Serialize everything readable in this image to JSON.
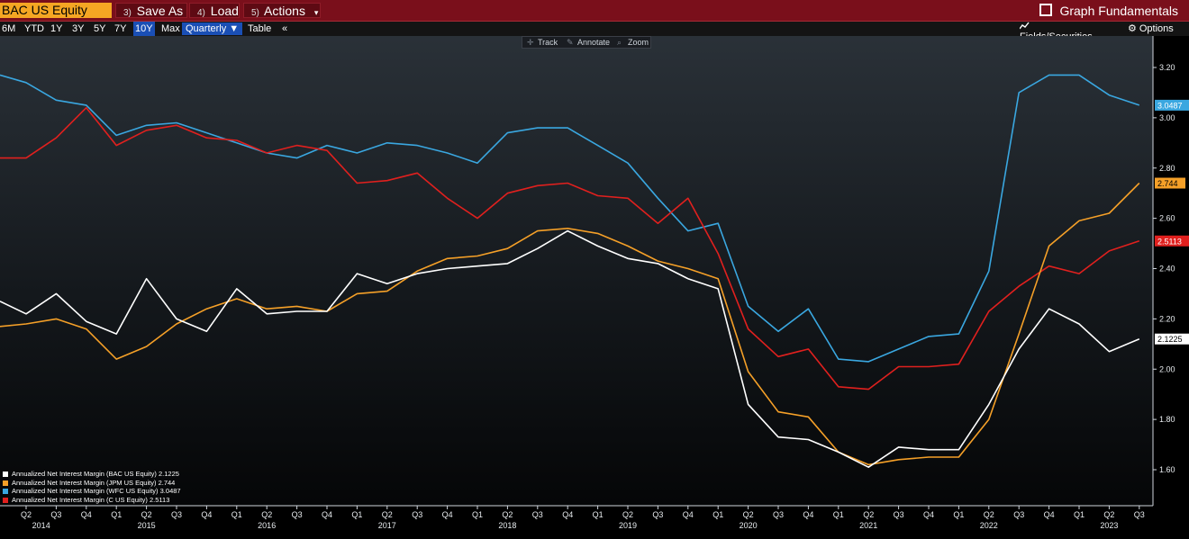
{
  "toolbar": {
    "ticker": "BAC US Equity",
    "save_as": {
      "num": "3)",
      "label": "Save As"
    },
    "load": {
      "num": "4)",
      "label": "Load"
    },
    "actions": {
      "num": "5)",
      "label": "Actions",
      "caret": "▾"
    },
    "graph_fundamentals": "Graph Fundamentals"
  },
  "timeframes": [
    "6M",
    "YTD",
    "1Y",
    "3Y",
    "5Y",
    "7Y",
    "10Y",
    "Max"
  ],
  "selected_timeframe": "10Y",
  "periodicity": "Quarterly ▼",
  "table_label": "Table",
  "collapse_label": "«",
  "fields_securities": "Fields/Securities",
  "options": "Options",
  "chart_tools": {
    "track": "Track",
    "annotate": "Annotate",
    "zoom": "Zoom"
  },
  "colors": {
    "background": "#000000",
    "bac": "#ffffff",
    "jpm": "#f5a028",
    "wfc": "#3aa7e0",
    "c": "#e0201e",
    "accent": "#f5a623",
    "topbar": "#7a0f1b"
  },
  "chart_data": {
    "type": "line",
    "x_quarters": [
      "Q2 2014",
      "Q3 2014",
      "Q4 2014",
      "Q1 2015",
      "Q2 2015",
      "Q3 2015",
      "Q4 2015",
      "Q1 2016",
      "Q2 2016",
      "Q3 2016",
      "Q4 2016",
      "Q1 2017",
      "Q2 2017",
      "Q3 2017",
      "Q4 2017",
      "Q1 2018",
      "Q2 2018",
      "Q3 2018",
      "Q4 2018",
      "Q1 2019",
      "Q2 2019",
      "Q3 2019",
      "Q4 2019",
      "Q1 2020",
      "Q2 2020",
      "Q3 2020",
      "Q4 2020",
      "Q1 2021",
      "Q2 2021",
      "Q3 2021",
      "Q4 2021",
      "Q1 2022",
      "Q2 2022",
      "Q3 2022",
      "Q4 2022",
      "Q1 2023",
      "Q2 2023",
      "Q3 2023"
    ],
    "x_tick_labels": [
      "Q2",
      "Q3",
      "Q4",
      "Q1",
      "Q2",
      "Q3",
      "Q4",
      "Q1",
      "Q2",
      "Q3",
      "Q4",
      "Q1",
      "Q2",
      "Q3",
      "Q4",
      "Q1",
      "Q2",
      "Q3",
      "Q4",
      "Q1",
      "Q2",
      "Q3",
      "Q4",
      "Q1",
      "Q2",
      "Q3",
      "Q4",
      "Q1",
      "Q2",
      "Q3",
      "Q4",
      "Q1",
      "Q2",
      "Q3",
      "Q4",
      "Q1",
      "Q2",
      "Q3"
    ],
    "x_year_labels": [
      {
        "label": "2014",
        "at": 0.5
      },
      {
        "label": "2015",
        "at": 4
      },
      {
        "label": "2016",
        "at": 8
      },
      {
        "label": "2017",
        "at": 12
      },
      {
        "label": "2018",
        "at": 16
      },
      {
        "label": "2019",
        "at": 20
      },
      {
        "label": "2020",
        "at": 24
      },
      {
        "label": "2021",
        "at": 28
      },
      {
        "label": "2022",
        "at": 32
      },
      {
        "label": "2023",
        "at": 36
      }
    ],
    "ylim": [
      1.5,
      3.3
    ],
    "y_ticks": [
      "1.60",
      "1.80",
      "2.00",
      "2.20",
      "2.40",
      "2.60",
      "2.80",
      "3.00",
      "3.20"
    ],
    "grid": false,
    "legend_position": "bottom-left",
    "series": [
      {
        "key": "wfc",
        "name": "Annualized Net Interest Margin (WFC US Equity)  3.0487",
        "last_label": "3.0487",
        "start_value": 3.17,
        "values": [
          3.14,
          3.07,
          3.05,
          2.93,
          2.97,
          2.98,
          2.94,
          2.9,
          2.86,
          2.84,
          2.89,
          2.86,
          2.9,
          2.89,
          2.86,
          2.82,
          2.94,
          2.96,
          2.96,
          2.89,
          2.82,
          2.68,
          2.55,
          2.58,
          2.25,
          2.15,
          2.24,
          2.04,
          2.03,
          2.08,
          2.13,
          2.14,
          2.39,
          3.1,
          3.17,
          3.17,
          3.09,
          3.05
        ]
      },
      {
        "key": "c",
        "name": "Annualized Net Interest Margin (C US Equity)  2.5113",
        "last_label": "2.5113",
        "start_value": 2.84,
        "values": [
          2.84,
          2.92,
          3.04,
          2.89,
          2.95,
          2.97,
          2.92,
          2.91,
          2.86,
          2.89,
          2.87,
          2.74,
          2.75,
          2.78,
          2.68,
          2.6,
          2.7,
          2.73,
          2.74,
          2.69,
          2.68,
          2.58,
          2.68,
          2.46,
          2.16,
          2.05,
          2.08,
          1.93,
          1.92,
          2.01,
          2.01,
          2.02,
          2.23,
          2.33,
          2.41,
          2.38,
          2.47,
          2.51
        ]
      },
      {
        "key": "jpm",
        "name": "Annualized Net Interest Margin (JPM US Equity)  2.744",
        "last_label": "2.744",
        "start_value": 2.17,
        "values": [
          2.18,
          2.2,
          2.16,
          2.04,
          2.09,
          2.18,
          2.24,
          2.28,
          2.24,
          2.25,
          2.23,
          2.3,
          2.31,
          2.39,
          2.44,
          2.45,
          2.48,
          2.55,
          2.56,
          2.54,
          2.49,
          2.43,
          2.4,
          2.36,
          1.99,
          1.83,
          1.81,
          1.67,
          1.62,
          1.64,
          1.65,
          1.65,
          1.8,
          2.14,
          2.49,
          2.59,
          2.62,
          2.74
        ]
      },
      {
        "key": "bac",
        "name": "Annualized Net Interest Margin (BAC US Equity)  2.1225",
        "last_label": "2.1225",
        "start_value": 2.27,
        "values": [
          2.22,
          2.3,
          2.19,
          2.14,
          2.36,
          2.2,
          2.15,
          2.32,
          2.22,
          2.23,
          2.23,
          2.38,
          2.34,
          2.38,
          2.4,
          2.41,
          2.42,
          2.48,
          2.55,
          2.49,
          2.44,
          2.42,
          2.36,
          2.32,
          1.86,
          1.73,
          1.72,
          1.67,
          1.61,
          1.69,
          1.68,
          1.68,
          1.86,
          2.08,
          2.24,
          2.18,
          2.07,
          2.12
        ]
      }
    ]
  },
  "legend": [
    {
      "key": "bac",
      "text": "Annualized Net Interest Margin (BAC US Equity)  2.1225"
    },
    {
      "key": "jpm",
      "text": "Annualized Net Interest Margin (JPM US Equity)  2.744"
    },
    {
      "key": "wfc",
      "text": "Annualized Net Interest Margin (WFC US Equity)  3.0487"
    },
    {
      "key": "c",
      "text": "Annualized Net Interest Margin (C US Equity)  2.5113"
    }
  ]
}
